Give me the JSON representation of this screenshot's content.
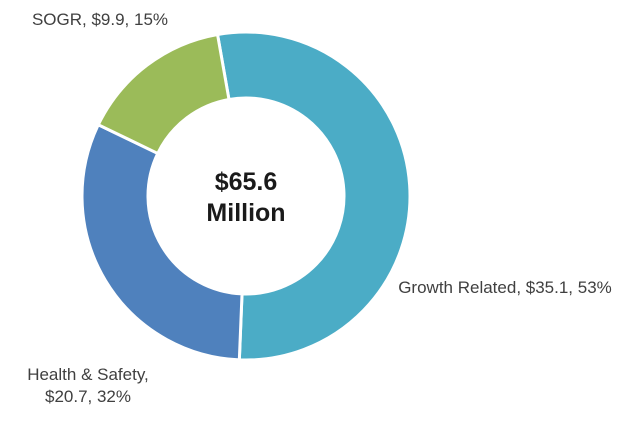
{
  "chart_data": {
    "type": "donut",
    "categories": [
      "Growth Related",
      "Health & Safety",
      "SOGR"
    ],
    "values": [
      35.1,
      20.7,
      9.9
    ],
    "value_labels": [
      "Growth Related, $35.1, 53%",
      "Health & Safety, $20.7, 32%",
      "SOGR, $9.9, 15%"
    ],
    "colors": [
      "#4bacc6",
      "#4f81bd",
      "#9bbb59"
    ],
    "center_label": "$65.6 Million"
  }
}
